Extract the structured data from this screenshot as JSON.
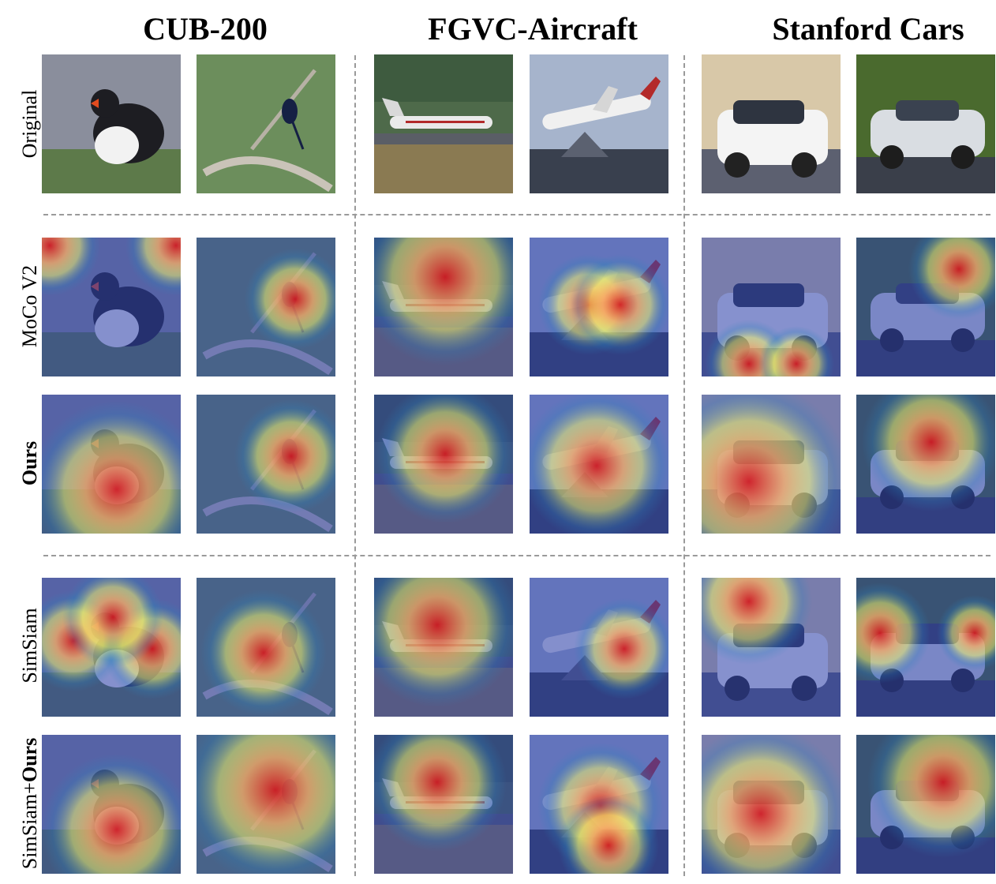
{
  "figure": {
    "columns": [
      {
        "title": "CUB-200"
      },
      {
        "title": "FGVC-Aircraft"
      },
      {
        "title": "Stanford Cars"
      }
    ],
    "rows": [
      {
        "label": "Original",
        "kind": "original",
        "bold": ""
      },
      {
        "label": "MoCo V2",
        "kind": "heatmap-moco",
        "bold": ""
      },
      {
        "label": "",
        "kind": "heatmap-ours",
        "bold": "Ours"
      },
      {
        "label": "SimSiam",
        "kind": "heatmap-simsiam",
        "bold": ""
      },
      {
        "label": "SimSiam+",
        "kind": "heatmap-simsiam-ours",
        "bold": "Ours"
      }
    ],
    "colors": {
      "heat_hot": "#d7191c",
      "heat_warm": "#fdae61",
      "heat_mid": "#ffff66",
      "heat_cool": "#2b83ba",
      "heat_bg": "#2c3fae",
      "separator": "#9a9a9a"
    }
  }
}
